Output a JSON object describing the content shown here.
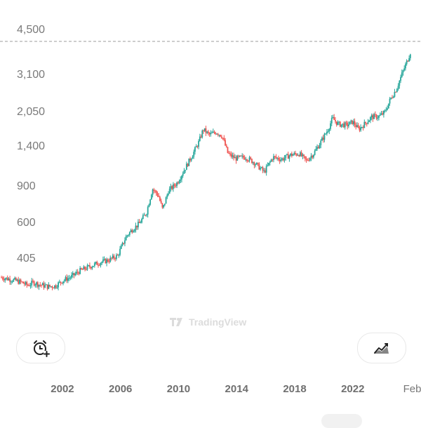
{
  "chart_data": {
    "type": "candlestick",
    "title": "",
    "xlabel": "",
    "ylabel": "",
    "y_scale": "log",
    "y_ticks": [
      405,
      600,
      900,
      1400,
      2050,
      3100,
      4500
    ],
    "y_tick_labels": [
      "405",
      "600",
      "900",
      "1,400",
      "2,050",
      "3,100",
      "4,500"
    ],
    "x_tick_labels": [
      "2002",
      "2006",
      "2010",
      "2014",
      "2018",
      "2022",
      "Feb"
    ],
    "x_ticks": [
      2002,
      2006,
      2010,
      2014,
      2018,
      2022,
      2026.1
    ],
    "xlim": [
      1997.7,
      2026.7
    ],
    "last_price_line": 4500,
    "up_color": "#26a69a",
    "down_color": "#ef5350",
    "grid": false,
    "approx_close_path": [
      [
        1997.8,
        330
      ],
      [
        1998.5,
        322
      ],
      [
        1999.2,
        312
      ],
      [
        1999.6,
        302
      ],
      [
        2000.0,
        312
      ],
      [
        2000.4,
        305
      ],
      [
        2001.0,
        298
      ],
      [
        2001.5,
        300
      ],
      [
        2002.0,
        318
      ],
      [
        2002.6,
        332
      ],
      [
        2003.2,
        355
      ],
      [
        2003.8,
        370
      ],
      [
        2004.5,
        388
      ],
      [
        2005.2,
        400
      ],
      [
        2005.8,
        420
      ],
      [
        2006.4,
        520
      ],
      [
        2006.8,
        560
      ],
      [
        2007.3,
        600
      ],
      [
        2007.8,
        680
      ],
      [
        2008.2,
        880
      ],
      [
        2008.6,
        820
      ],
      [
        2008.9,
        700
      ],
      [
        2009.3,
        860
      ],
      [
        2009.9,
        940
      ],
      [
        2010.5,
        1120
      ],
      [
        2011.0,
        1300
      ],
      [
        2011.4,
        1480
      ],
      [
        2011.7,
        1700
      ],
      [
        2012.1,
        1600
      ],
      [
        2012.6,
        1650
      ],
      [
        2013.0,
        1580
      ],
      [
        2013.4,
        1300
      ],
      [
        2013.9,
        1230
      ],
      [
        2014.6,
        1250
      ],
      [
        2015.2,
        1180
      ],
      [
        2015.9,
        1060
      ],
      [
        2016.5,
        1250
      ],
      [
        2017.1,
        1220
      ],
      [
        2017.7,
        1280
      ],
      [
        2018.3,
        1300
      ],
      [
        2018.8,
        1200
      ],
      [
        2019.3,
        1300
      ],
      [
        2019.8,
        1480
      ],
      [
        2020.3,
        1700
      ],
      [
        2020.6,
        1920
      ],
      [
        2021.0,
        1800
      ],
      [
        2021.6,
        1780
      ],
      [
        2022.0,
        1850
      ],
      [
        2022.4,
        1700
      ],
      [
        2022.8,
        1800
      ],
      [
        2023.3,
        1950
      ],
      [
        2023.8,
        1960
      ],
      [
        2024.2,
        2050
      ],
      [
        2024.6,
        2380
      ],
      [
        2025.0,
        2650
      ],
      [
        2025.4,
        3150
      ],
      [
        2025.8,
        3700
      ],
      [
        2026.0,
        4050
      ]
    ]
  },
  "watermark": {
    "text": "TradingView"
  },
  "buttons": {
    "alert_icon": "alarm-plus-icon",
    "indicator_icon": "chart-indicator-icon"
  }
}
